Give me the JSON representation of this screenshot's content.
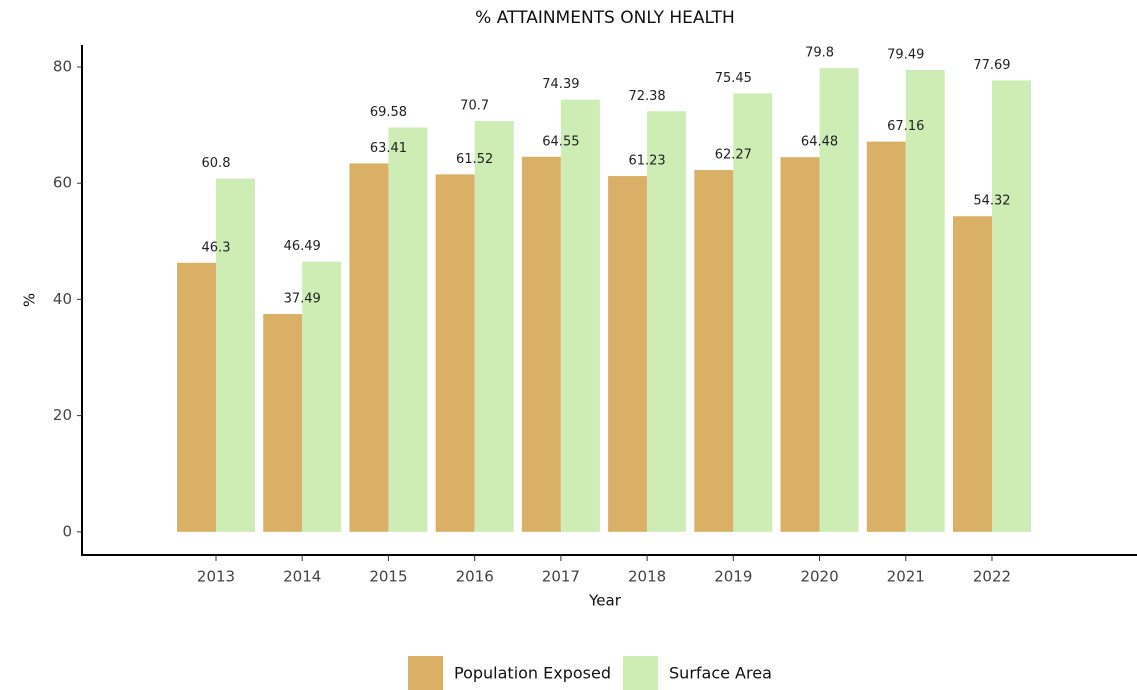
{
  "chart_data": {
    "type": "bar",
    "title": "% ATTAINMENTS ONLY HEALTH",
    "x_label": "Year",
    "y_label": "%",
    "categories": [
      "2013",
      "2014",
      "2015",
      "2016",
      "2017",
      "2018",
      "2019",
      "2020",
      "2021",
      "2022"
    ],
    "series": [
      {
        "name": "Population Exposed",
        "color": "#d9b065",
        "values": [
          46.3,
          37.49,
          63.41,
          61.52,
          64.55,
          61.23,
          62.27,
          64.48,
          67.16,
          54.32
        ]
      },
      {
        "name": "Surface Area",
        "color": "#cdedb5",
        "values": [
          60.8,
          46.49,
          69.58,
          70.7,
          74.39,
          72.38,
          75.45,
          79.8,
          79.49,
          77.69
        ]
      }
    ],
    "ylim": [
      -3.99,
      83.79
    ],
    "yticks": [
      0,
      20,
      40,
      60,
      80
    ],
    "legend": "bottom"
  }
}
